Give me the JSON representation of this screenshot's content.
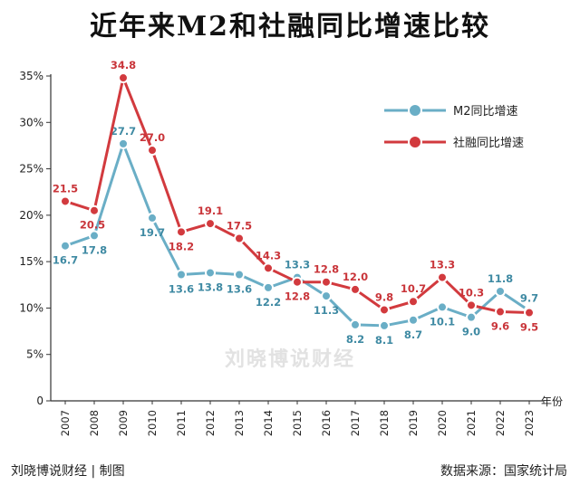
{
  "title": "近年来M2和社融同比增速比较",
  "footer": {
    "left": "刘晓博说财经 | 制图",
    "right": "数据来源：国家统计局"
  },
  "watermark": "刘晓博说财经",
  "chart_data": {
    "type": "line",
    "categories": [
      "2007",
      "2008",
      "2009",
      "2010",
      "2011",
      "2012",
      "2013",
      "2014",
      "2015",
      "2016",
      "2017",
      "2018",
      "2019",
      "2020",
      "2021",
      "2022",
      "2023"
    ],
    "x_unit_label": "年份",
    "ylim": [
      0,
      35
    ],
    "y_ticks": [
      "0",
      "5%",
      "10%",
      "15%",
      "20%",
      "25%",
      "30%",
      "35%"
    ],
    "grid": false,
    "legend_position": "top-right",
    "series": [
      {
        "name": "M2同比增速",
        "color": "#6aaec6",
        "values": [
          16.7,
          17.8,
          27.7,
          19.7,
          13.6,
          13.8,
          13.6,
          12.2,
          13.3,
          11.3,
          8.2,
          8.1,
          8.7,
          10.1,
          9.0,
          11.8,
          9.7
        ],
        "labels": [
          "16.7",
          "17.8",
          "27.7",
          "19.7",
          "13.6",
          "13.8",
          "13.6",
          "12.2",
          "13.3",
          "11.3",
          "8.2",
          "8.1",
          "8.7",
          "10.1",
          "9.0",
          "11.8",
          "9.7"
        ]
      },
      {
        "name": "社融同比增速",
        "color": "#d23a3e",
        "values": [
          21.5,
          20.5,
          34.8,
          27.0,
          18.2,
          19.1,
          17.5,
          14.3,
          12.8,
          12.8,
          12.0,
          9.8,
          10.7,
          13.3,
          10.3,
          9.6,
          9.5
        ],
        "labels": [
          "21.5",
          "20.5",
          "34.8",
          "27.0",
          "18.2",
          "19.1",
          "17.5",
          "14.3",
          "12.8",
          "12.8",
          "12.0",
          "9.8",
          "10.7",
          "13.3",
          "10.3",
          "9.6",
          "9.5"
        ]
      }
    ]
  }
}
